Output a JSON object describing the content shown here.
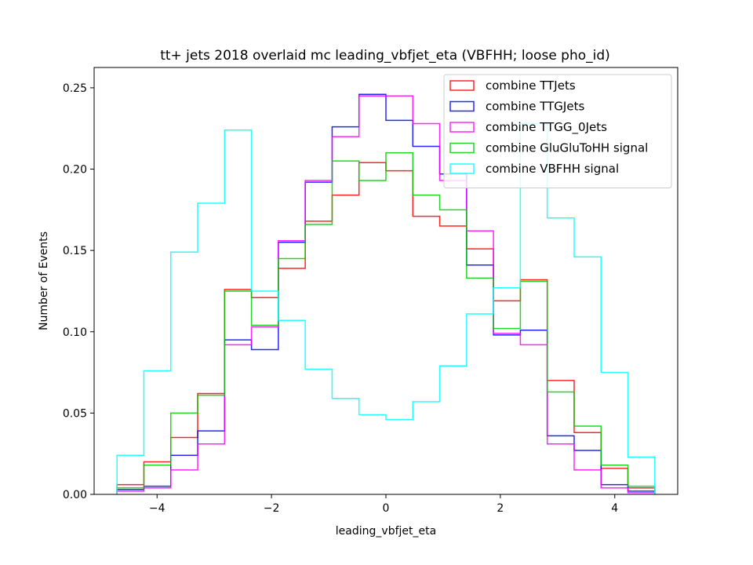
{
  "chart_data": {
    "type": "step-histogram",
    "title": "tt+ jets 2018 overlaid mc leading_vbfjet_eta (VBFHH; loose pho_id)",
    "xlabel": "leading_vbfjet_eta",
    "ylabel": "Number of Events",
    "xlim": [
      -5.1,
      5.1
    ],
    "ylim": [
      0,
      0.2625
    ],
    "xticks": [
      -4,
      -2,
      0,
      2,
      4
    ],
    "xtick_labels": [
      "−4",
      "−2",
      "0",
      "2",
      "4"
    ],
    "yticks": [
      0.0,
      0.05,
      0.1,
      0.15,
      0.2,
      0.25
    ],
    "ytick_labels": [
      "0.00",
      "0.05",
      "0.10",
      "0.15",
      "0.20",
      "0.25"
    ],
    "legend_position": "top-right",
    "bin_edges": [
      -4.7,
      -4.23,
      -3.76,
      -3.29,
      -2.82,
      -2.35,
      -1.88,
      -1.41,
      -0.94,
      -0.47,
      0.0,
      0.47,
      0.94,
      1.41,
      1.88,
      2.35,
      2.82,
      3.29,
      3.76,
      4.23,
      4.7
    ],
    "series": [
      {
        "name": "combine TTJets",
        "color": "#ff0000",
        "values": [
          0.006,
          0.02,
          0.035,
          0.062,
          0.126,
          0.121,
          0.139,
          0.168,
          0.184,
          0.204,
          0.199,
          0.171,
          0.165,
          0.151,
          0.119,
          0.132,
          0.07,
          0.038,
          0.016,
          0.004
        ]
      },
      {
        "name": "combine TTGJets",
        "color": "#0000ff",
        "values": [
          0.003,
          0.005,
          0.024,
          0.039,
          0.095,
          0.089,
          0.155,
          0.192,
          0.226,
          0.246,
          0.23,
          0.214,
          0.197,
          0.141,
          0.098,
          0.101,
          0.036,
          0.027,
          0.006,
          0.002
        ]
      },
      {
        "name": "combine TTGG_0Jets",
        "color": "#ff00ff",
        "values": [
          0.002,
          0.004,
          0.015,
          0.031,
          0.092,
          0.103,
          0.156,
          0.193,
          0.22,
          0.245,
          0.245,
          0.228,
          0.193,
          0.162,
          0.099,
          0.092,
          0.031,
          0.015,
          0.004,
          0.001
        ]
      },
      {
        "name": "combine GluGluToHH signal",
        "color": "#00cc00",
        "values": [
          0.004,
          0.018,
          0.05,
          0.061,
          0.125,
          0.104,
          0.145,
          0.166,
          0.205,
          0.193,
          0.21,
          0.184,
          0.175,
          0.133,
          0.102,
          0.131,
          0.063,
          0.042,
          0.018,
          0.005
        ]
      },
      {
        "name": "combine VBFHH signal",
        "color": "#00ffff",
        "values": [
          0.024,
          0.076,
          0.149,
          0.179,
          0.224,
          0.125,
          0.107,
          0.077,
          0.059,
          0.049,
          0.046,
          0.057,
          0.079,
          0.111,
          0.127,
          0.228,
          0.17,
          0.146,
          0.075,
          0.023
        ]
      }
    ]
  }
}
